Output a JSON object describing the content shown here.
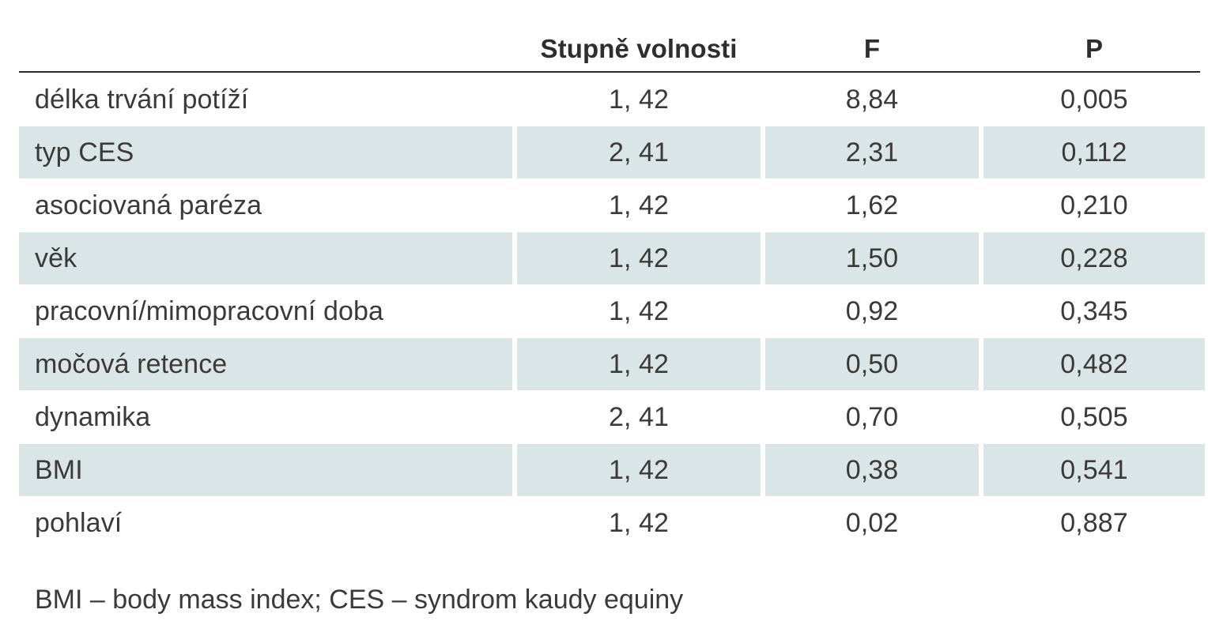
{
  "table": {
    "headers": [
      "",
      "Stupně volnosti",
      "F",
      "P"
    ],
    "rows": [
      {
        "label": "délka trvání potíží",
        "df": "1, 42",
        "f": "8,84",
        "p": "0,005"
      },
      {
        "label": "typ CES",
        "df": "2, 41",
        "f": "2,31",
        "p": "0,112"
      },
      {
        "label": "asociovaná paréza",
        "df": "1, 42",
        "f": "1,62",
        "p": "0,210"
      },
      {
        "label": "věk",
        "df": "1, 42",
        "f": "1,50",
        "p": "0,228"
      },
      {
        "label": "pracovní/mimopracovní doba",
        "df": "1, 42",
        "f": "0,92",
        "p": "0,345"
      },
      {
        "label": "močová retence",
        "df": "1, 42",
        "f": "0,50",
        "p": "0,482"
      },
      {
        "label": "dynamika",
        "df": "2, 41",
        "f": "0,70",
        "p": "0,505"
      },
      {
        "label": "BMI",
        "df": "1, 42",
        "f": "0,38",
        "p": "0,541"
      },
      {
        "label": "pohlaví",
        "df": "1, 42",
        "f": "0,02",
        "p": "0,887"
      }
    ]
  },
  "footnote": "BMI – body mass index; CES – syndrom kaudy equiny",
  "colors": {
    "shade": "#d9e5e6",
    "rule": "#2a2a2a",
    "text": "#3a3a3a"
  }
}
